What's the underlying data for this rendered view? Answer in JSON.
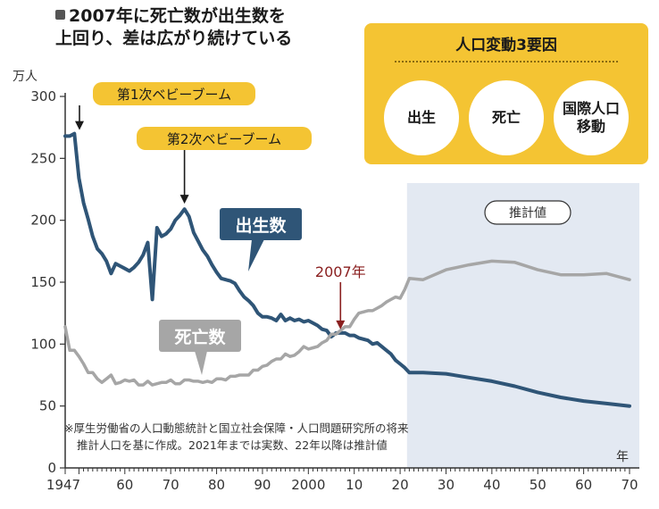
{
  "title": {
    "line1": "2007年に死亡数が出生数を",
    "line2": "上回り、差は広がり続けている"
  },
  "factors": {
    "title": "人口変動3要因",
    "items": [
      "出生",
      "死亡",
      "国際人口\n移動"
    ]
  },
  "chart_data": {
    "type": "line",
    "ylabel": "万人",
    "xlabel": "年",
    "ylim": [
      0,
      300
    ],
    "xlim": [
      1947,
      2070
    ],
    "y_ticks": [
      0,
      50,
      100,
      150,
      200,
      250,
      300
    ],
    "x_ticks": [
      1947,
      1960,
      1970,
      1980,
      1990,
      2000,
      2010,
      2020,
      2030,
      2040,
      2050,
      2060,
      2070
    ],
    "x_tick_labels": [
      "1947",
      "60",
      "70",
      "80",
      "90",
      "2000",
      "10",
      "20",
      "30",
      "40",
      "50",
      "60",
      "70"
    ],
    "projection_start": 2021,
    "projection_label": "推計値",
    "series": [
      {
        "name": "出生数",
        "color": "#2f5577",
        "points": [
          [
            1947,
            268
          ],
          [
            1948,
            268
          ],
          [
            1949,
            270
          ],
          [
            1950,
            234
          ],
          [
            1951,
            214
          ],
          [
            1952,
            201
          ],
          [
            1953,
            187
          ],
          [
            1954,
            177
          ],
          [
            1955,
            173
          ],
          [
            1956,
            167
          ],
          [
            1957,
            157
          ],
          [
            1958,
            165
          ],
          [
            1959,
            163
          ],
          [
            1960,
            161
          ],
          [
            1961,
            159
          ],
          [
            1962,
            162
          ],
          [
            1963,
            166
          ],
          [
            1964,
            172
          ],
          [
            1965,
            182
          ],
          [
            1966,
            136
          ],
          [
            1967,
            194
          ],
          [
            1968,
            187
          ],
          [
            1969,
            189
          ],
          [
            1970,
            193
          ],
          [
            1971,
            200
          ],
          [
            1972,
            204
          ],
          [
            1973,
            209
          ],
          [
            1974,
            203
          ],
          [
            1975,
            190
          ],
          [
            1976,
            183
          ],
          [
            1977,
            176
          ],
          [
            1978,
            171
          ],
          [
            1979,
            164
          ],
          [
            1980,
            158
          ],
          [
            1981,
            153
          ],
          [
            1982,
            152
          ],
          [
            1983,
            151
          ],
          [
            1984,
            149
          ],
          [
            1985,
            143
          ],
          [
            1986,
            138
          ],
          [
            1987,
            135
          ],
          [
            1988,
            131
          ],
          [
            1989,
            125
          ],
          [
            1990,
            122
          ],
          [
            1991,
            122
          ],
          [
            1992,
            121
          ],
          [
            1993,
            119
          ],
          [
            1994,
            124
          ],
          [
            1995,
            119
          ],
          [
            1996,
            121
          ],
          [
            1997,
            119
          ],
          [
            1998,
            120
          ],
          [
            1999,
            118
          ],
          [
            2000,
            119
          ],
          [
            2001,
            117
          ],
          [
            2002,
            115
          ],
          [
            2003,
            112
          ],
          [
            2004,
            111
          ],
          [
            2005,
            106
          ],
          [
            2006,
            109
          ],
          [
            2007,
            109
          ],
          [
            2008,
            109
          ],
          [
            2009,
            107
          ],
          [
            2010,
            107
          ],
          [
            2011,
            105
          ],
          [
            2012,
            104
          ],
          [
            2013,
            103
          ],
          [
            2014,
            100
          ],
          [
            2015,
            101
          ],
          [
            2016,
            98
          ],
          [
            2017,
            95
          ],
          [
            2018,
            92
          ],
          [
            2019,
            87
          ],
          [
            2020,
            84
          ],
          [
            2021,
            81
          ],
          [
            2022,
            77
          ],
          [
            2025,
            77
          ],
          [
            2030,
            76
          ],
          [
            2035,
            73
          ],
          [
            2040,
            70
          ],
          [
            2045,
            66
          ],
          [
            2050,
            61
          ],
          [
            2055,
            57
          ],
          [
            2060,
            54
          ],
          [
            2065,
            52
          ],
          [
            2070,
            50
          ]
        ]
      },
      {
        "name": "死亡数",
        "color": "#a6a6a6",
        "points": [
          [
            1947,
            114
          ],
          [
            1948,
            95
          ],
          [
            1949,
            95
          ],
          [
            1950,
            90
          ],
          [
            1951,
            84
          ],
          [
            1952,
            77
          ],
          [
            1953,
            77
          ],
          [
            1954,
            72
          ],
          [
            1955,
            69
          ],
          [
            1956,
            72
          ],
          [
            1957,
            75
          ],
          [
            1958,
            68
          ],
          [
            1959,
            69
          ],
          [
            1960,
            71
          ],
          [
            1961,
            70
          ],
          [
            1962,
            71
          ],
          [
            1963,
            67
          ],
          [
            1964,
            67
          ],
          [
            1965,
            70
          ],
          [
            1966,
            67
          ],
          [
            1967,
            68
          ],
          [
            1968,
            69
          ],
          [
            1969,
            69
          ],
          [
            1970,
            71
          ],
          [
            1971,
            68
          ],
          [
            1972,
            68
          ],
          [
            1973,
            71
          ],
          [
            1974,
            71
          ],
          [
            1975,
            70
          ],
          [
            1976,
            70
          ],
          [
            1977,
            69
          ],
          [
            1978,
            70
          ],
          [
            1979,
            69
          ],
          [
            1980,
            72
          ],
          [
            1981,
            72
          ],
          [
            1982,
            71
          ],
          [
            1983,
            74
          ],
          [
            1984,
            74
          ],
          [
            1985,
            75
          ],
          [
            1986,
            75
          ],
          [
            1987,
            75
          ],
          [
            1988,
            79
          ],
          [
            1989,
            79
          ],
          [
            1990,
            82
          ],
          [
            1991,
            83
          ],
          [
            1992,
            86
          ],
          [
            1993,
            88
          ],
          [
            1994,
            88
          ],
          [
            1995,
            92
          ],
          [
            1996,
            90
          ],
          [
            1997,
            91
          ],
          [
            1998,
            94
          ],
          [
            1999,
            98
          ],
          [
            2000,
            96
          ],
          [
            2001,
            97
          ],
          [
            2002,
            98
          ],
          [
            2003,
            101
          ],
          [
            2004,
            103
          ],
          [
            2005,
            108
          ],
          [
            2006,
            108
          ],
          [
            2007,
            111
          ],
          [
            2008,
            114
          ],
          [
            2009,
            114
          ],
          [
            2010,
            120
          ],
          [
            2011,
            125
          ],
          [
            2012,
            126
          ],
          [
            2013,
            127
          ],
          [
            2014,
            127
          ],
          [
            2015,
            129
          ],
          [
            2016,
            131
          ],
          [
            2017,
            134
          ],
          [
            2018,
            136
          ],
          [
            2019,
            138
          ],
          [
            2020,
            137
          ],
          [
            2021,
            144
          ],
          [
            2022,
            153
          ],
          [
            2025,
            152
          ],
          [
            2030,
            160
          ],
          [
            2035,
            164
          ],
          [
            2040,
            167
          ],
          [
            2045,
            166
          ],
          [
            2050,
            160
          ],
          [
            2055,
            156
          ],
          [
            2060,
            156
          ],
          [
            2065,
            157
          ],
          [
            2070,
            152
          ]
        ]
      }
    ],
    "annotations": [
      {
        "text": "第1次ベビーブーム",
        "x": 1949,
        "y": 270
      },
      {
        "text": "第2次ベビーブーム",
        "x": 1973,
        "y": 209
      },
      {
        "text": "2007年",
        "x": 2007,
        "y": 109
      },
      {
        "text": "出生数",
        "x": 1984,
        "y": 150
      },
      {
        "text": "死亡数",
        "x": 1976,
        "y": 72
      }
    ]
  },
  "note": {
    "line1": "※厚生労働省の人口動態統計と国立社会保障・人口問題研究所の将来",
    "line2": "推計人口を基に作成。2021年までは実数、22年以降は推計値"
  }
}
